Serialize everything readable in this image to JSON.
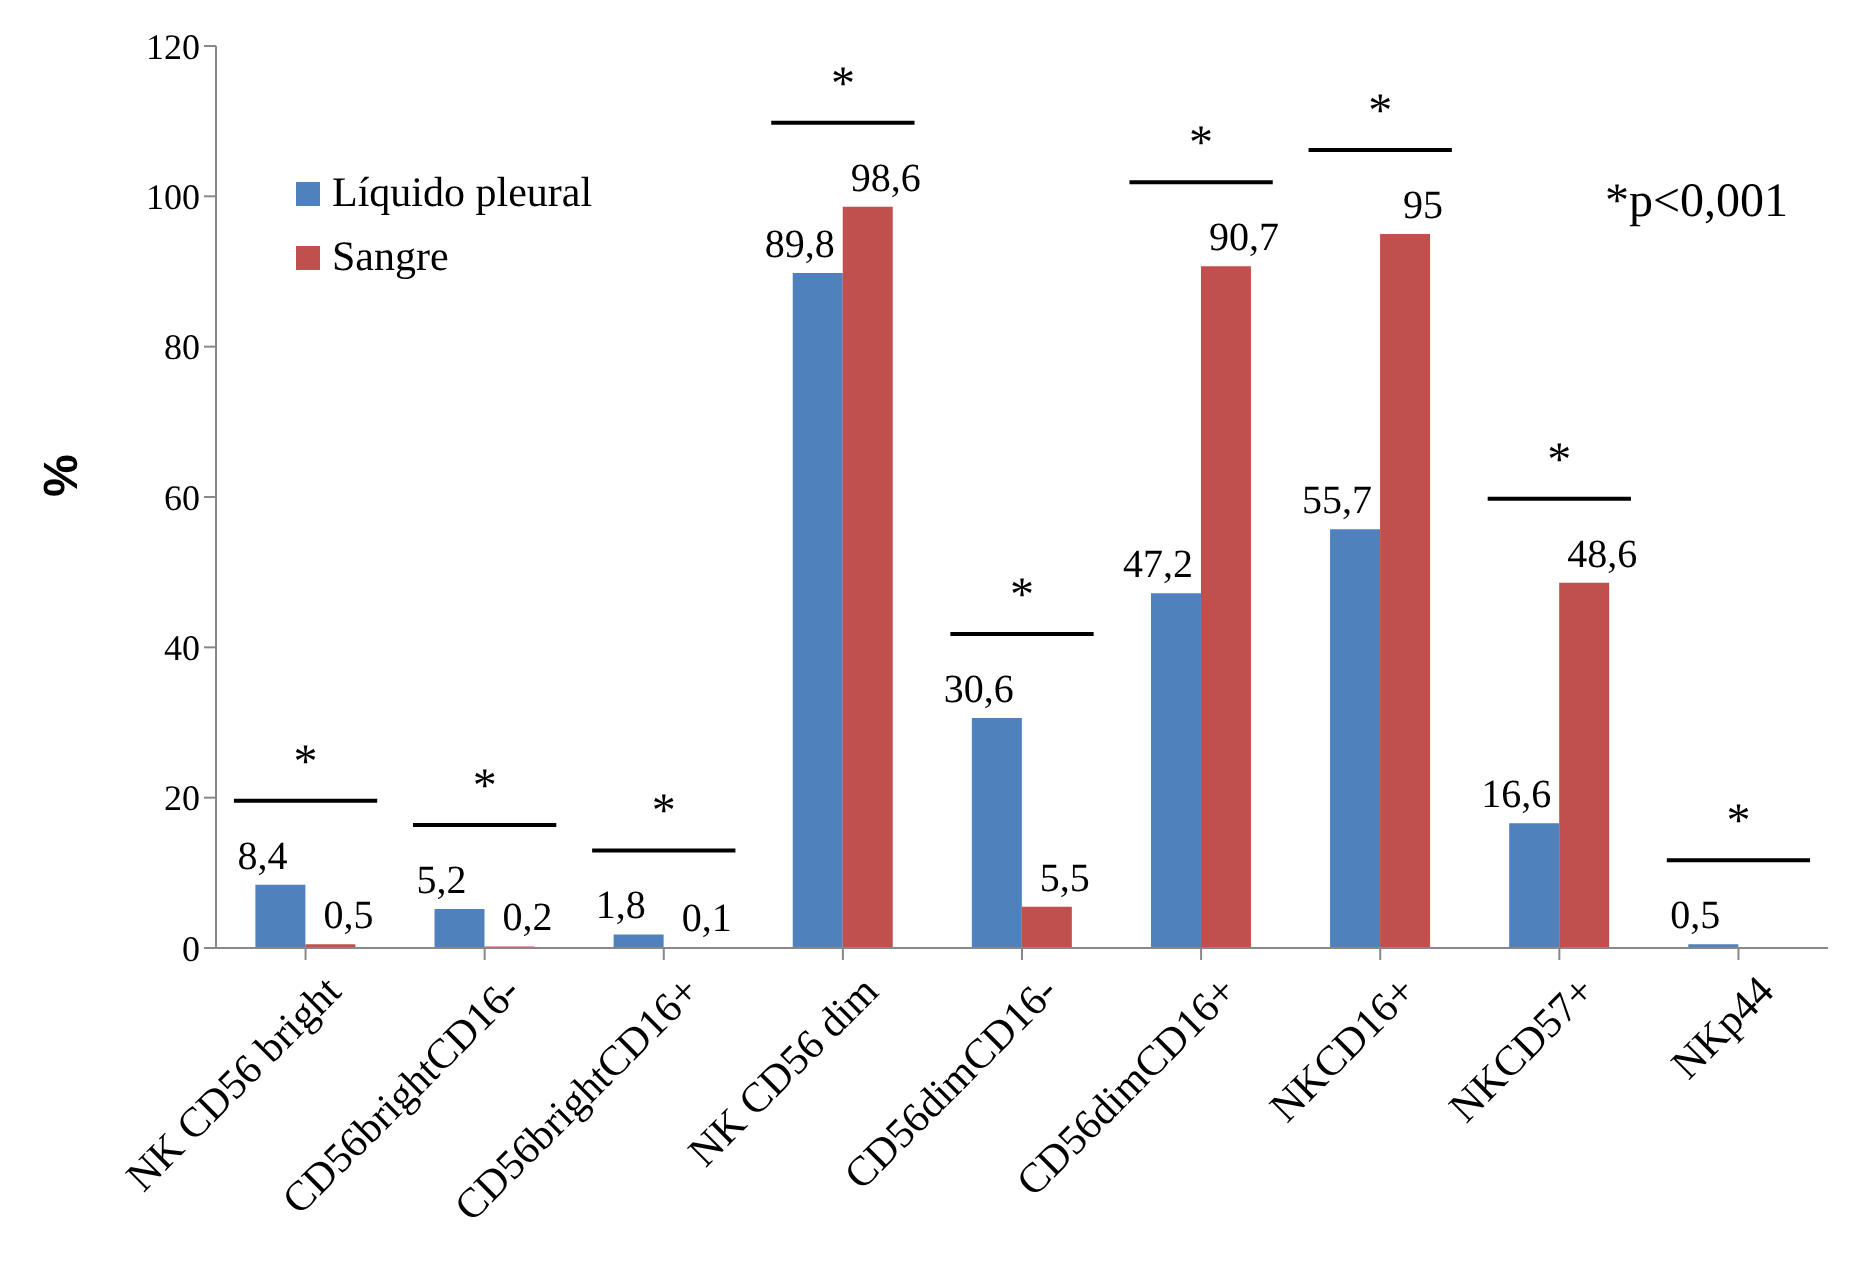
{
  "chart_data": {
    "type": "bar",
    "ylabel": "%",
    "categories": [
      "NK CD56 bright",
      "CD56brightCD16-",
      "CD56brightCD16+",
      "NK CD56 dim",
      "CD56dimCD16-",
      "CD56dimCD16+",
      "NKCD16+",
      "NKCD57+",
      "NKp44"
    ],
    "series": [
      {
        "name": "Líquido pleural",
        "color": "#4f81bd",
        "values": [
          8.4,
          5.2,
          1.8,
          89.8,
          30.6,
          47.2,
          55.7,
          16.6,
          0.5
        ],
        "value_labels": [
          "8,4",
          "5,2",
          "1,8",
          "89,8",
          "30,6",
          "47,2",
          "55,7",
          "16,6",
          "0,5"
        ]
      },
      {
        "name": "Sangre",
        "color": "#c0504d",
        "values": [
          0.5,
          0.2,
          0.1,
          98.6,
          5.5,
          90.7,
          95,
          48.6,
          null
        ],
        "value_labels": [
          "0,5",
          "0,2",
          "0,1",
          "98,6",
          "5,5",
          "90,7",
          "95",
          "48,6",
          null
        ]
      }
    ],
    "ylim": [
      0,
      120
    ],
    "yticks": [
      0,
      20,
      40,
      60,
      80,
      100,
      120
    ],
    "grid": false,
    "legend": "top left",
    "annotations": [
      "*",
      "*",
      "*",
      "*",
      "*",
      "*",
      "*",
      "*",
      "*",
      "*p<0,001"
    ]
  }
}
